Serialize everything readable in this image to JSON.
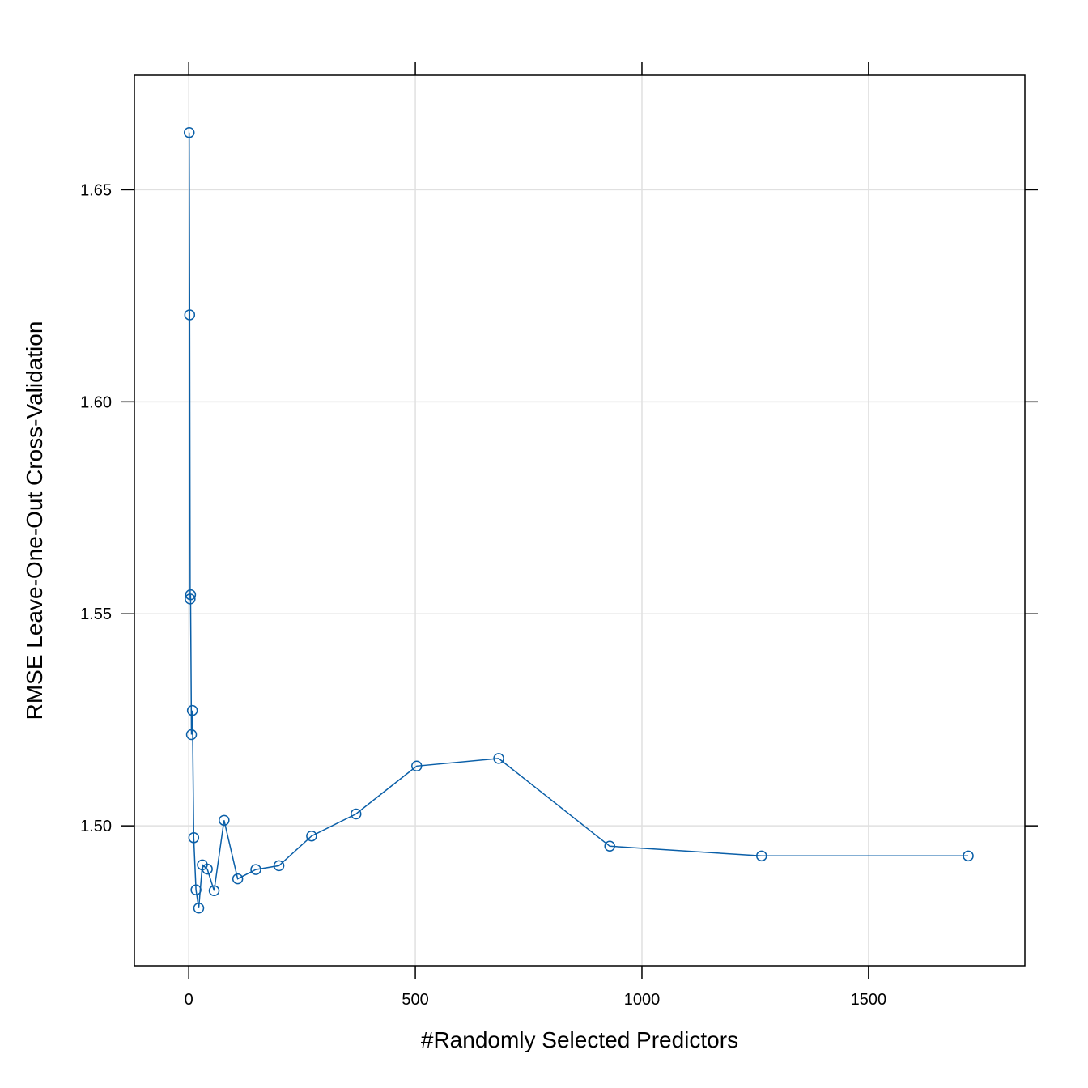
{
  "chart_data": {
    "type": "line",
    "xlabel": "#Randomly Selected Predictors",
    "ylabel": "RMSE Leave-One-Out Cross-Validation",
    "xlim": [
      -120,
      1845
    ],
    "ylim": [
      1.467,
      1.677
    ],
    "x_ticks": [
      0,
      500,
      1000,
      1500
    ],
    "y_ticks": [
      1.5,
      1.55,
      1.6,
      1.65
    ],
    "x_tick_labels": [
      "0",
      "500",
      "1000",
      "1500"
    ],
    "y_tick_labels": [
      "1.50",
      "1.55",
      "1.60",
      "1.65"
    ],
    "grid": true,
    "series": [
      {
        "color": "#0a5fa8",
        "marker": "open-circle",
        "x": [
          1,
          2,
          3,
          4,
          6,
          8,
          11,
          16,
          22,
          30,
          41,
          56,
          78,
          108,
          148,
          199,
          271,
          369,
          503,
          684,
          929,
          1264,
          1720
        ],
        "y": [
          1.6635,
          1.6205,
          1.5535,
          1.5545,
          1.5215,
          1.5272,
          1.4972,
          1.4849,
          1.4806,
          1.4908,
          1.4898,
          1.4847,
          1.5013,
          1.4875,
          1.4897,
          1.4906,
          1.4976,
          1.5028,
          1.5141,
          1.5159,
          1.4952,
          1.4929,
          1.4929
        ]
      }
    ]
  }
}
